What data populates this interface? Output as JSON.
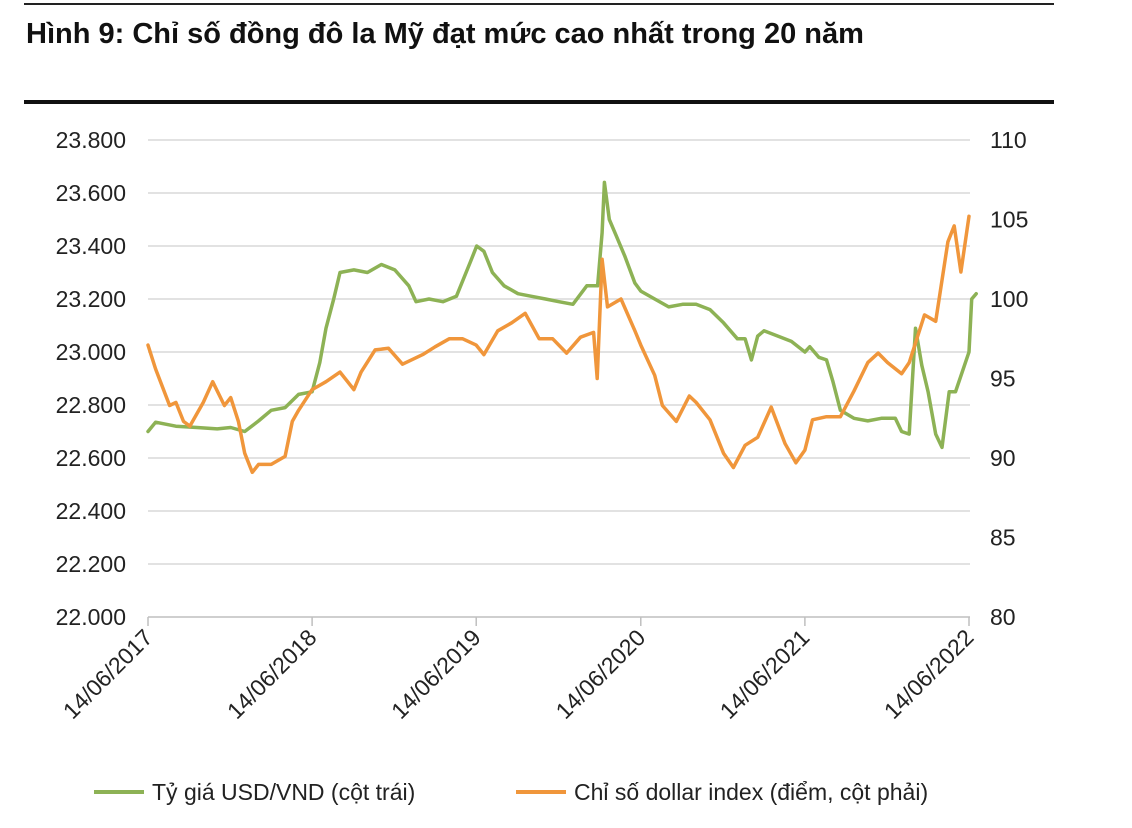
{
  "title": "Hình 9: Chỉ số đồng đô la Mỹ đạt mức cao nhất trong 20 năm",
  "chart_data": {
    "type": "line",
    "x_ticks": [
      "14/06/2017",
      "14/06/2018",
      "14/06/2019",
      "14/06/2020",
      "14/06/2021",
      "14/06/2022"
    ],
    "y_left": {
      "ticks": [
        "23.800",
        "23.600",
        "23.400",
        "23.200",
        "23.000",
        "22.800",
        "22.600",
        "22.400",
        "22.200",
        "22.000"
      ],
      "ylim": [
        22000,
        23800
      ]
    },
    "y_right": {
      "ticks": [
        "110",
        "105",
        "100",
        "95",
        "90",
        "85",
        "80"
      ],
      "ylim": [
        80,
        110
      ]
    },
    "grid": true,
    "legend_position": "bottom",
    "series": [
      {
        "name": "Tỷ giá USD/VND (cột trái)",
        "axis": "left",
        "color": "#8db255",
        "points": [
          [
            "2017-06-14",
            22700
          ],
          [
            "2017-07-01",
            22735
          ],
          [
            "2017-08-15",
            22720
          ],
          [
            "2017-10-01",
            22715
          ],
          [
            "2017-11-15",
            22710
          ],
          [
            "2017-12-15",
            22715
          ],
          [
            "2018-01-15",
            22700
          ],
          [
            "2018-02-15",
            22740
          ],
          [
            "2018-03-15",
            22780
          ],
          [
            "2018-04-15",
            22790
          ],
          [
            "2018-05-15",
            22840
          ],
          [
            "2018-06-14",
            22850
          ],
          [
            "2018-07-01",
            22960
          ],
          [
            "2018-07-15",
            23090
          ],
          [
            "2018-08-01",
            23200
          ],
          [
            "2018-08-15",
            23300
          ],
          [
            "2018-09-15",
            23310
          ],
          [
            "2018-10-15",
            23300
          ],
          [
            "2018-11-15",
            23330
          ],
          [
            "2018-12-15",
            23310
          ],
          [
            "2019-01-15",
            23250
          ],
          [
            "2019-01-31",
            23190
          ],
          [
            "2019-03-01",
            23200
          ],
          [
            "2019-04-01",
            23190
          ],
          [
            "2019-05-01",
            23210
          ],
          [
            "2019-06-01",
            23340
          ],
          [
            "2019-06-15",
            23400
          ],
          [
            "2019-07-01",
            23380
          ],
          [
            "2019-07-20",
            23300
          ],
          [
            "2019-08-15",
            23250
          ],
          [
            "2019-09-15",
            23220
          ],
          [
            "2019-10-15",
            23210
          ],
          [
            "2019-11-15",
            23200
          ],
          [
            "2019-12-15",
            23190
          ],
          [
            "2020-01-15",
            23180
          ],
          [
            "2020-02-15",
            23250
          ],
          [
            "2020-03-10",
            23250
          ],
          [
            "2020-03-20",
            23450
          ],
          [
            "2020-03-25",
            23640
          ],
          [
            "2020-04-05",
            23500
          ],
          [
            "2020-04-20",
            23440
          ],
          [
            "2020-05-10",
            23360
          ],
          [
            "2020-06-01",
            23260
          ],
          [
            "2020-06-14",
            23230
          ],
          [
            "2020-07-15",
            23200
          ],
          [
            "2020-08-15",
            23170
          ],
          [
            "2020-09-15",
            23180
          ],
          [
            "2020-10-15",
            23180
          ],
          [
            "2020-11-15",
            23160
          ],
          [
            "2020-12-15",
            23110
          ],
          [
            "2021-01-15",
            23050
          ],
          [
            "2021-02-01",
            23050
          ],
          [
            "2021-02-15",
            22970
          ],
          [
            "2021-03-01",
            23060
          ],
          [
            "2021-03-15",
            23080
          ],
          [
            "2021-04-15",
            23060
          ],
          [
            "2021-05-15",
            23040
          ],
          [
            "2021-06-14",
            23000
          ],
          [
            "2021-06-25",
            23020
          ],
          [
            "2021-07-15",
            22980
          ],
          [
            "2021-08-01",
            22970
          ],
          [
            "2021-08-15",
            22890
          ],
          [
            "2021-09-01",
            22780
          ],
          [
            "2021-10-01",
            22750
          ],
          [
            "2021-11-01",
            22740
          ],
          [
            "2021-12-01",
            22750
          ],
          [
            "2022-01-01",
            22750
          ],
          [
            "2022-01-15",
            22700
          ],
          [
            "2022-02-01",
            22690
          ],
          [
            "2022-02-15",
            23090
          ],
          [
            "2022-03-01",
            22950
          ],
          [
            "2022-03-15",
            22850
          ],
          [
            "2022-04-01",
            22690
          ],
          [
            "2022-04-15",
            22640
          ],
          [
            "2022-05-01",
            22850
          ],
          [
            "2022-05-15",
            22850
          ],
          [
            "2022-06-14",
            23000
          ],
          [
            "2022-06-20",
            23200
          ],
          [
            "2022-06-30",
            23220
          ]
        ]
      },
      {
        "name": "Chỉ số dollar index (điểm, cột phải)",
        "axis": "right",
        "color": "#f0963b",
        "points": [
          [
            "2017-06-14",
            97.1
          ],
          [
            "2017-07-01",
            95.6
          ],
          [
            "2017-08-01",
            93.3
          ],
          [
            "2017-08-15",
            93.5
          ],
          [
            "2017-09-01",
            92.3
          ],
          [
            "2017-09-15",
            92.0
          ],
          [
            "2017-10-15",
            93.5
          ],
          [
            "2017-11-05",
            94.8
          ],
          [
            "2017-12-01",
            93.3
          ],
          [
            "2017-12-15",
            93.8
          ],
          [
            "2018-01-01",
            92.3
          ],
          [
            "2018-01-15",
            90.3
          ],
          [
            "2018-02-01",
            89.1
          ],
          [
            "2018-02-15",
            89.6
          ],
          [
            "2018-03-15",
            89.6
          ],
          [
            "2018-04-15",
            90.1
          ],
          [
            "2018-05-01",
            92.3
          ],
          [
            "2018-05-15",
            93.0
          ],
          [
            "2018-06-14",
            94.3
          ],
          [
            "2018-07-15",
            94.8
          ],
          [
            "2018-08-15",
            95.4
          ],
          [
            "2018-09-15",
            94.3
          ],
          [
            "2018-10-01",
            95.4
          ],
          [
            "2018-11-01",
            96.8
          ],
          [
            "2018-12-01",
            96.9
          ],
          [
            "2019-01-01",
            95.9
          ],
          [
            "2019-02-15",
            96.5
          ],
          [
            "2019-03-15",
            97.0
          ],
          [
            "2019-04-15",
            97.5
          ],
          [
            "2019-05-15",
            97.5
          ],
          [
            "2019-06-14",
            97.1
          ],
          [
            "2019-07-01",
            96.5
          ],
          [
            "2019-08-01",
            98.0
          ],
          [
            "2019-09-01",
            98.5
          ],
          [
            "2019-10-01",
            99.1
          ],
          [
            "2019-11-01",
            97.5
          ],
          [
            "2019-12-01",
            97.5
          ],
          [
            "2020-01-01",
            96.6
          ],
          [
            "2020-02-01",
            97.6
          ],
          [
            "2020-03-01",
            97.9
          ],
          [
            "2020-03-09",
            95.0
          ],
          [
            "2020-03-20",
            102.5
          ],
          [
            "2020-04-01",
            99.5
          ],
          [
            "2020-05-01",
            100.0
          ],
          [
            "2020-06-01",
            98.0
          ],
          [
            "2020-06-14",
            97.1
          ],
          [
            "2020-07-15",
            95.2
          ],
          [
            "2020-08-01",
            93.3
          ],
          [
            "2020-09-01",
            92.3
          ],
          [
            "2020-09-30",
            93.9
          ],
          [
            "2020-10-15",
            93.5
          ],
          [
            "2020-11-15",
            92.4
          ],
          [
            "2020-12-15",
            90.3
          ],
          [
            "2021-01-06",
            89.4
          ],
          [
            "2021-02-01",
            90.8
          ],
          [
            "2021-03-01",
            91.3
          ],
          [
            "2021-03-31",
            93.2
          ],
          [
            "2021-05-01",
            90.9
          ],
          [
            "2021-05-25",
            89.7
          ],
          [
            "2021-06-14",
            90.5
          ],
          [
            "2021-07-01",
            92.4
          ],
          [
            "2021-08-01",
            92.6
          ],
          [
            "2021-09-01",
            92.6
          ],
          [
            "2021-10-01",
            94.2
          ],
          [
            "2021-11-01",
            96.0
          ],
          [
            "2021-11-24",
            96.6
          ],
          [
            "2021-12-15",
            96.0
          ],
          [
            "2022-01-15",
            95.3
          ],
          [
            "2022-02-01",
            96.0
          ],
          [
            "2022-03-07",
            99.0
          ],
          [
            "2022-04-01",
            98.6
          ],
          [
            "2022-04-28",
            103.6
          ],
          [
            "2022-05-12",
            104.6
          ],
          [
            "2022-05-27",
            101.7
          ],
          [
            "2022-06-14",
            105.2
          ]
        ]
      }
    ]
  }
}
